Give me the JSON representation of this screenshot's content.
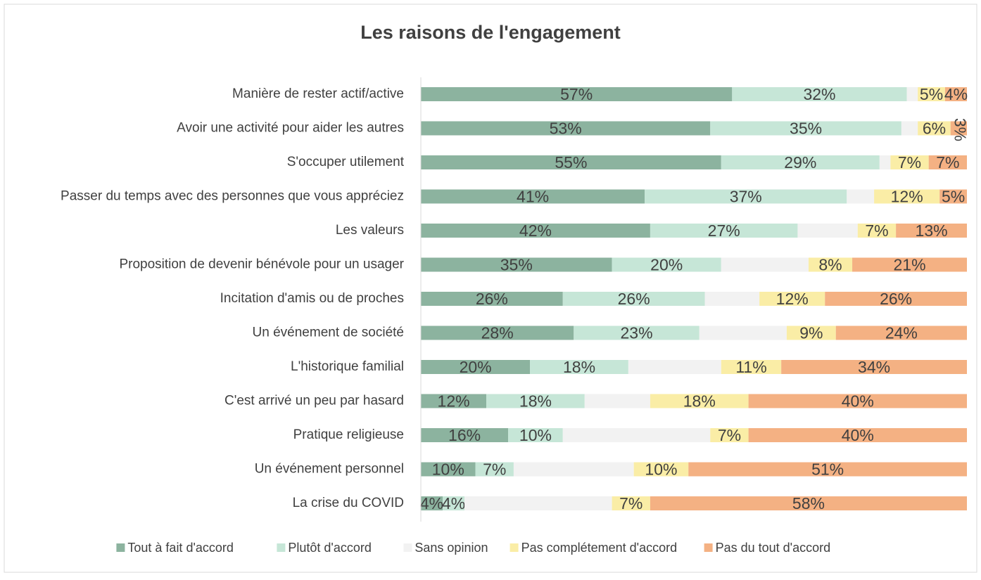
{
  "chart_data": {
    "type": "stacked-bar-100",
    "title": "Les raisons de l'engagement",
    "categories": [
      "Manière de rester actif/active",
      "Avoir une activité pour aider les autres",
      "S'occuper utilement",
      "Passer du temps avec des personnes que vous appréciez",
      "Les valeurs",
      "Proposition de devenir bénévole pour un usager",
      "Incitation d'amis ou de proches",
      "Un événement de société",
      "L'historique familial",
      "C'est arrivé un peu par hasard",
      "Pratique religieuse",
      "Un événement personnel",
      "La crise du COVID"
    ],
    "xlim": [
      0,
      100
    ],
    "legend": "bottom",
    "series": [
      {
        "name": "Tout à fait d'accord",
        "color": "#8cb39f",
        "values": [
          57,
          53,
          55,
          41,
          42,
          35,
          26,
          28,
          20,
          12,
          16,
          10,
          4
        ],
        "value_labels": [
          "57%",
          "53%",
          "55%",
          "41%",
          "42%",
          "35%",
          "26%",
          "28%",
          "20%",
          "12%",
          "16%",
          "10%",
          "4%"
        ]
      },
      {
        "name": "Plutôt d'accord",
        "color": "#c6e6d7",
        "values": [
          32,
          35,
          29,
          37,
          27,
          20,
          26,
          23,
          18,
          18,
          10,
          7,
          4
        ],
        "value_labels": [
          "32%",
          "35%",
          "29%",
          "37%",
          "27%",
          "20%",
          "26%",
          "23%",
          "18%",
          "18%",
          "10%",
          "7%",
          "4%"
        ]
      },
      {
        "name": "Sans opinion",
        "color": "#f2f2f2",
        "values": [
          2,
          3,
          2,
          5,
          11,
          16,
          10,
          16,
          17,
          12,
          27,
          22,
          27
        ]
      },
      {
        "name": "Pas complétement d'accord",
        "color": "#faeda6",
        "values": [
          5,
          6,
          7,
          12,
          7,
          8,
          12,
          9,
          11,
          18,
          7,
          10,
          7
        ],
        "value_labels": [
          "5%",
          "6%",
          "7%",
          "12%",
          "7%",
          "8%",
          "12%",
          "9%",
          "11%",
          "18%",
          "7%",
          "10%",
          "7%"
        ]
      },
      {
        "name": "Pas du tout d'accord",
        "color": "#f4b183",
        "values": [
          4,
          3,
          7,
          5,
          13,
          21,
          26,
          24,
          34,
          40,
          40,
          51,
          58
        ],
        "value_labels": [
          "4%",
          "3%",
          "7%",
          "5%",
          "13%",
          "21%",
          "26%",
          "24%",
          "34%",
          "40%",
          "40%",
          "51%",
          "58%"
        ]
      }
    ]
  }
}
